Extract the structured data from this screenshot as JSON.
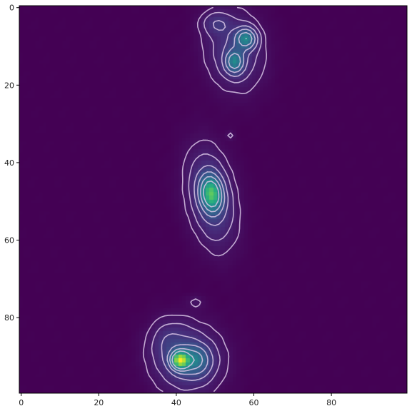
{
  "chart_data": {
    "type": "heatmap",
    "title": "",
    "xlabel": "",
    "ylabel": "",
    "xlim": [
      -0.5,
      99.5
    ],
    "ylim": [
      99.5,
      -0.5
    ],
    "y_inverted": true,
    "grid": false,
    "colormap": "viridis",
    "contour_color": "#d9c6e6",
    "x_ticks": [
      0,
      20,
      40,
      60,
      80
    ],
    "y_ticks": [
      0,
      20,
      40,
      60,
      80
    ],
    "x_tick_labels": [
      "0",
      "20",
      "40",
      "60",
      "80"
    ],
    "y_tick_labels": [
      "0",
      "20",
      "40",
      "60",
      "80"
    ],
    "blobs": [
      {
        "x": 58,
        "y": 8,
        "sx": 1.8,
        "sy": 1.8,
        "rot": 0,
        "amp": 0.42
      },
      {
        "x": 55,
        "y": 14,
        "sx": 1.6,
        "sy": 2.0,
        "rot": 0,
        "amp": 0.38
      },
      {
        "x": 55,
        "y": 11,
        "sx": 5.0,
        "sy": 7.0,
        "rot": 0.15,
        "amp": 0.18
      },
      {
        "x": 50,
        "y": 4,
        "sx": 2.5,
        "sy": 2.0,
        "rot": 0,
        "amp": 0.12
      },
      {
        "x": 49,
        "y": 48,
        "sx": 1.8,
        "sy": 3.0,
        "rot": 0.12,
        "amp": 0.62
      },
      {
        "x": 49,
        "y": 49,
        "sx": 4.0,
        "sy": 8.5,
        "rot": 0.18,
        "amp": 0.24
      },
      {
        "x": 41,
        "y": 91,
        "sx": 1.5,
        "sy": 1.5,
        "rot": 0,
        "amp": 0.82
      },
      {
        "x": 45,
        "y": 91,
        "sx": 2.5,
        "sy": 2.5,
        "rot": 0,
        "amp": 0.28
      },
      {
        "x": 43,
        "y": 91,
        "sx": 6.0,
        "sy": 6.0,
        "rot": 0.2,
        "amp": 0.22
      },
      {
        "x": 38,
        "y": 86,
        "sx": 3.5,
        "sy": 4.0,
        "rot": 0,
        "amp": 0.1
      },
      {
        "x": 45,
        "y": 76,
        "sx": 1.5,
        "sy": 1.2,
        "rot": 0,
        "amp": 0.06
      },
      {
        "x": 54,
        "y": 33,
        "sx": 0.8,
        "sy": 0.8,
        "rot": 0,
        "amp": 0.06
      }
    ],
    "contour_levels": [
      0.05,
      0.1,
      0.18,
      0.28,
      0.4,
      0.55
    ]
  }
}
